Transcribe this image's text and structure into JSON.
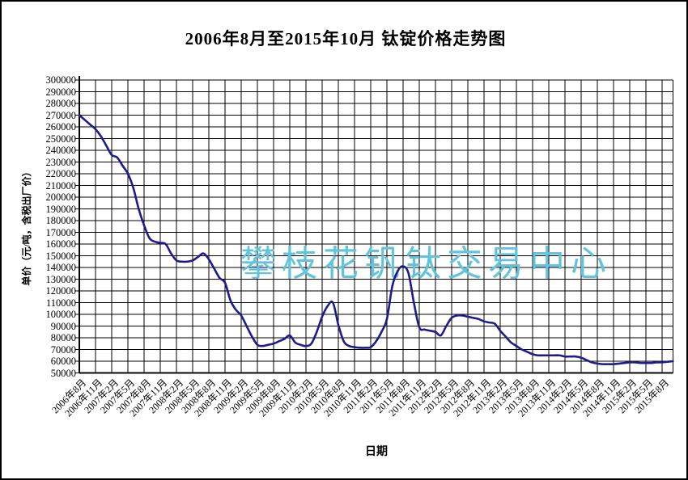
{
  "watermark": {
    "text": "攀枝花钒钛交易中心",
    "color": "#63c3dc"
  },
  "chart_data": {
    "type": "line",
    "title": "2006年8月至2015年10月 钛锭价格走势图",
    "xlabel": "日期",
    "ylabel": "单价（元/吨，含税出厂价）",
    "ylim": [
      50000,
      300000
    ],
    "ytick_step": 10000,
    "grid": "both",
    "line_color": "#1c1c8c",
    "axis_color": "#000000",
    "x_start": "2006年8月",
    "x_end": "2015年10月",
    "months_per_tick": 3,
    "y_tick_labels": [
      "300000",
      "290000",
      "280000",
      "270000",
      "260000",
      "250000",
      "240000",
      "230000",
      "220000",
      "210000",
      "200000",
      "190000",
      "180000",
      "170000",
      "160000",
      "150000",
      "140000",
      "130000",
      "120000",
      "110000",
      "100000",
      "90000",
      "80000",
      "70000",
      "60000",
      "50000"
    ],
    "x_tick_labels": [
      "2006年8月",
      "2006年11月",
      "2007年2月",
      "2007年5月",
      "2007年8月",
      "2007年11月",
      "2008年2月",
      "2008年5月",
      "2008年8月",
      "2008年11月",
      "2009年2月",
      "2009年5月",
      "2009年8月",
      "2009年11月",
      "2010年2月",
      "2010年5月",
      "2010年8月",
      "2010年11月",
      "2011年2月",
      "2011年5月",
      "2011年8月",
      "2011年11月",
      "2012年2月",
      "2012年5月",
      "2012年8月",
      "2012年11月",
      "2013年2月",
      "2013年5月",
      "2013年8月",
      "2013年11月",
      "2014年2月",
      "2014年5月",
      "2014年8月",
      "2014年11月",
      "2015年2月",
      "2015年5月",
      "2015年8月"
    ],
    "series": [
      {
        "name": "钛锭价格",
        "unit": "元/吨",
        "values": [
          270000,
          266000,
          262000,
          258000,
          252000,
          244000,
          236000,
          234000,
          227000,
          220000,
          208000,
          190000,
          176000,
          165000,
          162000,
          161000,
          160000,
          152000,
          146000,
          145000,
          145000,
          146000,
          149000,
          152000,
          147000,
          139000,
          131000,
          127000,
          112000,
          104000,
          99000,
          90000,
          81000,
          74000,
          73000,
          74000,
          75000,
          77000,
          79000,
          82000,
          76000,
          74000,
          73000,
          75000,
          85000,
          98000,
          107000,
          110000,
          91000,
          77000,
          73000,
          72000,
          71500,
          71500,
          72000,
          77000,
          85000,
          96000,
          124000,
          137000,
          141000,
          135000,
          110000,
          89000,
          87000,
          86000,
          85000,
          82000,
          90000,
          97000,
          99000,
          99000,
          98000,
          97000,
          96000,
          94000,
          93000,
          92000,
          86000,
          81000,
          76000,
          73000,
          70000,
          68000,
          66000,
          65000,
          65000,
          65000,
          65000,
          65000,
          64000,
          64000,
          64000,
          63000,
          61000,
          59000,
          58000,
          57500,
          57500,
          57500,
          58000,
          58500,
          59000,
          59000,
          58500,
          58500,
          58500,
          59000,
          59000,
          59500,
          60000
        ]
      }
    ]
  }
}
